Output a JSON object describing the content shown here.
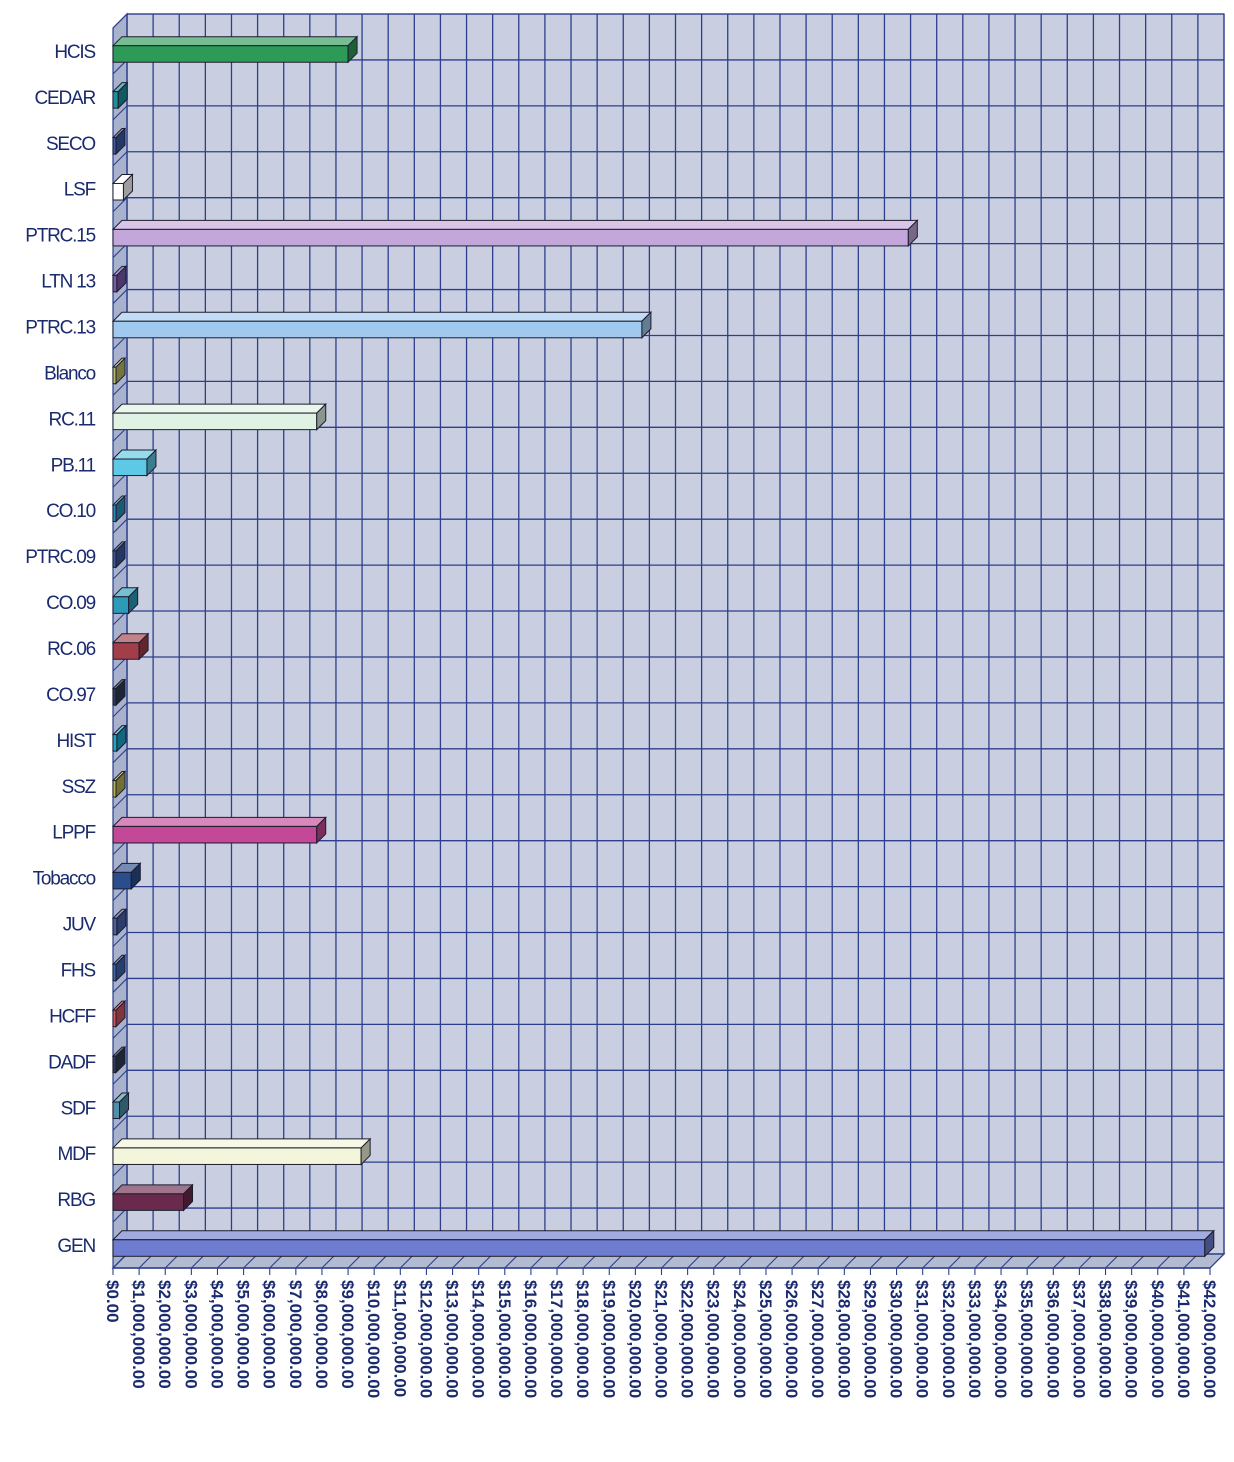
{
  "chart_data": {
    "type": "bar",
    "orientation": "horizontal",
    "three_d": true,
    "grid": true,
    "legend": "none",
    "title": "",
    "xlabel": "",
    "ylabel": "",
    "xlim": [
      0,
      42000000
    ],
    "x_ticks": [
      0,
      1000000,
      2000000,
      3000000,
      4000000,
      5000000,
      6000000,
      7000000,
      8000000,
      9000000,
      10000000,
      11000000,
      12000000,
      13000000,
      14000000,
      15000000,
      16000000,
      17000000,
      18000000,
      19000000,
      20000000,
      21000000,
      22000000,
      23000000,
      24000000,
      25000000,
      26000000,
      27000000,
      28000000,
      29000000,
      30000000,
      31000000,
      32000000,
      33000000,
      34000000,
      35000000,
      36000000,
      37000000,
      38000000,
      39000000,
      40000000,
      41000000,
      42000000
    ],
    "x_tick_labels": [
      "$0.00",
      "$1,000,000.00",
      "$2,000,000.00",
      "$3,000,000.00",
      "$4,000,000.00",
      "$5,000,000.00",
      "$6,000,000.00",
      "$7,000,000.00",
      "$8,000,000.00",
      "$9,000,000.00",
      "$10,000,000.00",
      "$11,000,000.00",
      "$12,000,000.00",
      "$13,000,000.00",
      "$14,000,000.00",
      "$15,000,000.00",
      "$16,000,000.00",
      "$17,000,000.00",
      "$18,000,000.00",
      "$19,000,000.00",
      "$20,000,000.00",
      "$21,000,000.00",
      "$22,000,000.00",
      "$23,000,000.00",
      "$24,000,000.00",
      "$25,000,000.00",
      "$26,000,000.00",
      "$27,000,000.00",
      "$28,000,000.00",
      "$29,000,000.00",
      "$30,000,000.00",
      "$31,000,000.00",
      "$32,000,000.00",
      "$33,000,000.00",
      "$34,000,000.00",
      "$35,000,000.00",
      "$36,000,000.00",
      "$37,000,000.00",
      "$38,000,000.00",
      "$39,000,000.00",
      "$40,000,000.00",
      "$41,000,000.00",
      "$42,000,000.00"
    ],
    "categories": [
      "HCIS",
      "CEDAR",
      "SECO",
      "LSF",
      "PTRC.15",
      "LTN 13",
      "PTRC.13",
      "Blanco",
      "RC.11",
      "PB.11",
      "CO.10",
      "PTRC.09",
      "CO.09",
      "RC.06",
      "CO.97",
      "HIST",
      "SSZ",
      "LPPF",
      "Tobacco",
      "JUV",
      "FHS",
      "HCFF",
      "DADF",
      "SDF",
      "MDF",
      "RBG",
      "GEN"
    ],
    "values": [
      9000000,
      200000,
      50000,
      400000,
      30450000,
      150000,
      20250000,
      100000,
      7800000,
      1300000,
      50000,
      80000,
      600000,
      1000000,
      100000,
      150000,
      100000,
      7800000,
      700000,
      150000,
      100000,
      100000,
      100000,
      250000,
      9500000,
      2700000,
      41800000
    ],
    "colors": [
      "#2e9a58",
      "#1f8f9e",
      "#3a5aa0",
      "#ffffff",
      "#c3a6da",
      "#7a5aa8",
      "#9fc9ee",
      "#b9bb6c",
      "#dff2e4",
      "#5ec9e6",
      "#2d8fb8",
      "#3a5aa0",
      "#2d9bb8",
      "#a23d4a",
      "#2e3d55",
      "#1ea6c8",
      "#b6b454",
      "#c44898",
      "#2a4d8e",
      "#4a60a8",
      "#3d66b0",
      "#d05660",
      "#2e3d55",
      "#4e90a8",
      "#f3f6da",
      "#6a2a4e",
      "#6f7dd0"
    ]
  }
}
